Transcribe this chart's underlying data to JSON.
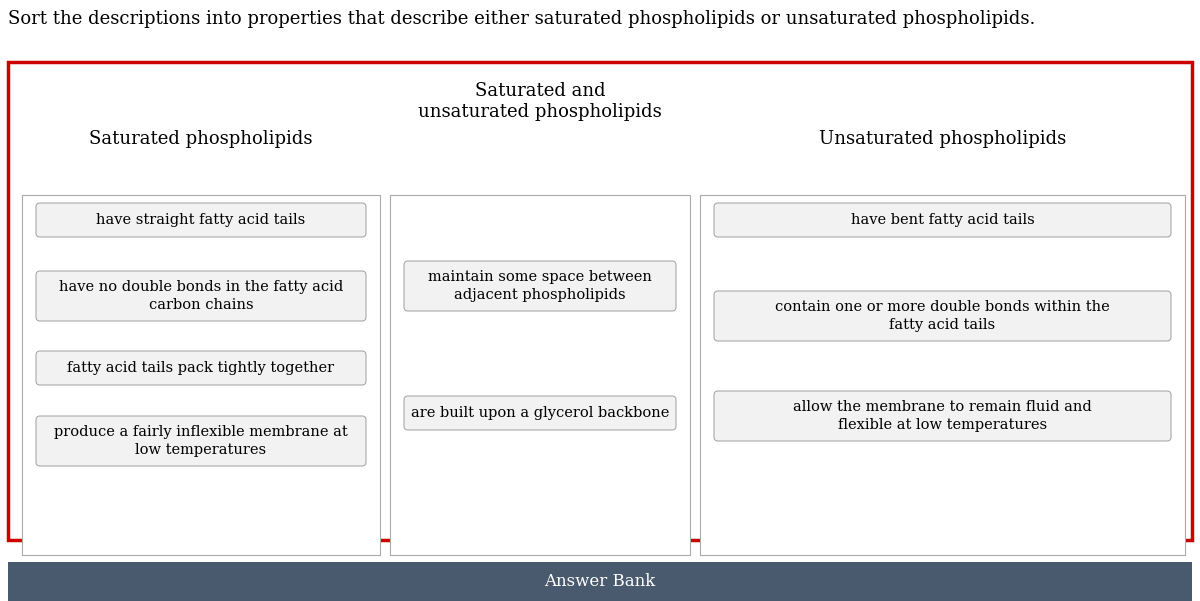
{
  "title": "Sort the descriptions into properties that describe either saturated phospholipids or unsaturated phospholipids.",
  "title_fontsize": 13,
  "background_color": "#ffffff",
  "outer_border_color": "#cc0000",
  "outer_border_lw": 2.5,
  "answer_bank_bg": "#4a5a6e",
  "answer_bank_text": "Answer Bank",
  "answer_bank_text_color": "#ffffff",
  "answer_bank_fontsize": 12,
  "col1_header": "Saturated phospholipids",
  "col2_header_line1": "Saturated and",
  "col2_header_line2": "unsaturated phospholipids",
  "col3_header": "Unsaturated phospholipids",
  "header_fontsize": 13,
  "col1_items": [
    "have straight fatty acid tails",
    "have no double bonds in the fatty acid\ncarbon chains",
    "fatty acid tails pack tightly together",
    "produce a fairly inflexible membrane at\nlow temperatures"
  ],
  "col2_items": [
    "maintain some space between\nadjacent phospholipids",
    "are built upon a glycerol backbone"
  ],
  "col3_items": [
    "have bent fatty acid tails",
    "contain one or more double bonds within the\nfatty acid tails",
    "allow the membrane to remain fluid and\nflexible at low temperatures"
  ],
  "item_fontsize": 10.5,
  "item_box_facecolor": "#f2f2f2",
  "item_box_edgecolor": "#aaaaaa",
  "col_box_facecolor": "#ffffff",
  "col_box_edgecolor": "#aaaaaa"
}
